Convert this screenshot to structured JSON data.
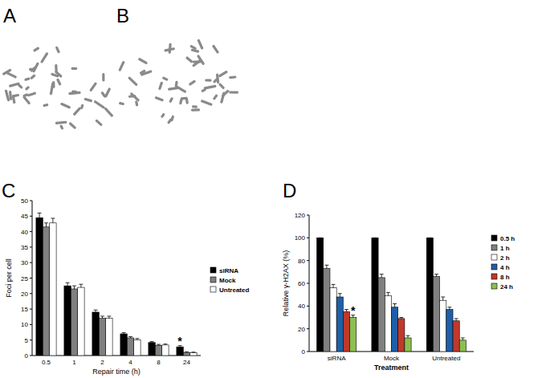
{
  "images": [
    {
      "label": "A"
    },
    {
      "label": "B"
    }
  ],
  "chart_data": [
    {
      "type": "bar",
      "title": "C",
      "x_label": "Repair time (h)",
      "y_label": "Foci per cell",
      "categories": [
        "0.5",
        "1",
        "2",
        "4",
        "8",
        "24"
      ],
      "series": [
        {
          "name": "siRNA",
          "color": "#000000",
          "values": [
            44.5,
            22.5,
            14,
            7,
            4.2,
            2.8
          ],
          "errors": [
            1.5,
            1,
            0.7,
            0.4,
            0.3,
            0.4
          ]
        },
        {
          "name": "Mock",
          "color": "#808080",
          "values": [
            41.5,
            21.5,
            12,
            5.7,
            3.3,
            1
          ],
          "errors": [
            1.3,
            1,
            0.7,
            0.4,
            0.3,
            0.2
          ]
        },
        {
          "name": "Untreated",
          "color": "#ffffff",
          "values": [
            42.8,
            22,
            12,
            5.1,
            3.4,
            0.9
          ],
          "errors": [
            1.5,
            1,
            0.7,
            0.4,
            0.3,
            0.2
          ]
        }
      ],
      "annotations": [
        {
          "text": "*",
          "x": "24",
          "series": "siRNA"
        }
      ],
      "ylim": [
        0,
        50
      ],
      "yticks": [
        0,
        5,
        10,
        15,
        20,
        25,
        30,
        35,
        40,
        45,
        50
      ],
      "grid": false,
      "legend": "right"
    },
    {
      "type": "bar",
      "title": "D",
      "x_label": "Treatment",
      "y_label": "Relative γ-H2AX (%)",
      "categories": [
        "siRNA",
        "Mock",
        "Untreated"
      ],
      "series": [
        {
          "name": "0.5 h",
          "color": "#000000",
          "values": [
            100,
            100,
            100
          ],
          "errors": [
            0,
            0,
            0
          ]
        },
        {
          "name": "1 h",
          "color": "#808080",
          "values": [
            73,
            65,
            66
          ],
          "errors": [
            3,
            3,
            2
          ]
        },
        {
          "name": "2 h",
          "color": "#ffffff",
          "values": [
            56,
            49,
            45
          ],
          "errors": [
            3,
            3,
            3
          ]
        },
        {
          "name": "4 h",
          "color": "#1f5fa8",
          "values": [
            48,
            39,
            37
          ],
          "errors": [
            3,
            3,
            2
          ]
        },
        {
          "name": "8 h",
          "color": "#c0392b",
          "values": [
            35,
            29,
            27
          ],
          "errors": [
            2,
            1,
            2
          ]
        },
        {
          "name": "24 h",
          "color": "#8cbf4f",
          "values": [
            30,
            12,
            10
          ],
          "errors": [
            2,
            2,
            2
          ]
        }
      ],
      "annotations": [
        {
          "text": "*",
          "x": "siRNA",
          "series": "24 h"
        }
      ],
      "ylim": [
        0,
        120
      ],
      "yticks": [
        0,
        20,
        40,
        60,
        80,
        100,
        120
      ],
      "grid": false,
      "legend": "right"
    }
  ]
}
